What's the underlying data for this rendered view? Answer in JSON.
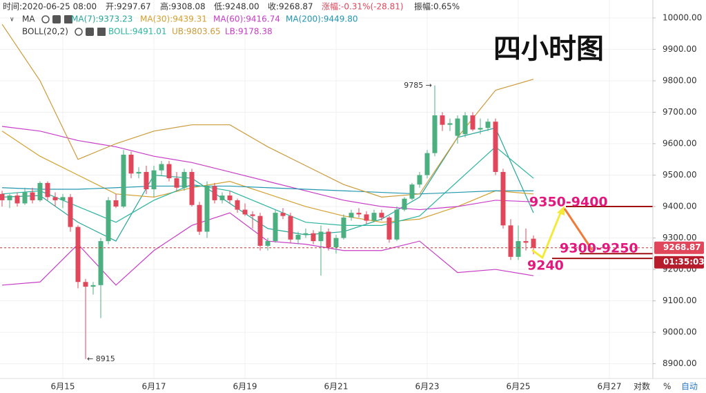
{
  "chart_data": {
    "type": "candlestick",
    "title": "四小时图",
    "header": [
      "时间:2020-06-25 08:00",
      "开:9297.67",
      "高:9308.08",
      "低:9248.00",
      "收:9268.87",
      "涨幅:-0.31%(-28.81)",
      "振幅:0.65%"
    ],
    "up_color": "#4caf80",
    "down_color": "#e0475b",
    "categories": [
      null,
      null,
      null,
      null,
      null,
      null,
      null,
      null,
      "6月15",
      null,
      null,
      null,
      null,
      null,
      null,
      null,
      null,
      null,
      null,
      null,
      "6月17",
      null,
      null,
      null,
      null,
      null,
      null,
      null,
      null,
      null,
      null,
      null,
      "6月19",
      null,
      null,
      null,
      null,
      null,
      null,
      null,
      null,
      null,
      null,
      null,
      "6月21",
      null,
      null,
      null,
      null,
      null,
      null,
      null,
      null,
      null,
      null,
      null,
      "6月23",
      null,
      null,
      null,
      null,
      null,
      null,
      null,
      null,
      null,
      null,
      null,
      "6月25",
      null,
      null,
      null,
      null,
      null,
      null,
      null,
      null,
      null,
      null,
      null,
      "6月27",
      null,
      null,
      null,
      null,
      null
    ],
    "open": [
      9440,
      9420,
      9435,
      9410,
      9445,
      9420,
      9475,
      9430,
      9420,
      9430,
      9335,
      9160,
      9145,
      9150,
      9290,
      9420,
      9400,
      9565,
      9505,
      9510,
      9455,
      9515,
      9535,
      9490,
      9460,
      9510,
      9405,
      9320,
      9465,
      9420,
      9435,
      9420,
      9390,
      9375,
      9370,
      9275,
      9290,
      9380,
      9370,
      9295,
      9310,
      9315,
      9290,
      9320,
      9270,
      9300,
      9365,
      9380,
      9375,
      9355,
      9380,
      9365,
      9295,
      9390,
      9425,
      9470,
      9500,
      9570,
      9690,
      9660,
      9625,
      9630,
      9690,
      9645,
      9650,
      9670,
      9510,
      9340,
      9240,
      9290,
      9297.67,
      null,
      null,
      null,
      null,
      null,
      null,
      null,
      null,
      null,
      null,
      null,
      null,
      null,
      null,
      null
    ],
    "high": [
      9450,
      9440,
      9445,
      9460,
      9460,
      9480,
      9480,
      9445,
      9440,
      9440,
      9340,
      9170,
      9160,
      9300,
      9430,
      9440,
      9580,
      9575,
      9525,
      9530,
      9530,
      9545,
      9545,
      9510,
      9520,
      9520,
      9415,
      9480,
      9475,
      9445,
      9450,
      9425,
      9410,
      9385,
      9380,
      9300,
      9390,
      9395,
      9380,
      9320,
      9330,
      9325,
      9340,
      9330,
      9310,
      9375,
      9390,
      9395,
      9385,
      9390,
      9390,
      9370,
      9400,
      9430,
      9475,
      9510,
      9580,
      9785,
      9700,
      9680,
      9690,
      9700,
      9700,
      9680,
      9680,
      9680,
      9520,
      9360,
      9340,
      9330,
      9308.08,
      null,
      null,
      null,
      null,
      null,
      null,
      null,
      null,
      null,
      null,
      null,
      null,
      null,
      null,
      null
    ],
    "low": [
      9400,
      9395,
      9400,
      9405,
      9410,
      9415,
      9420,
      9400,
      9395,
      9320,
      9140,
      8915,
      9120,
      9045,
      9280,
      9395,
      9395,
      9490,
      9490,
      9440,
      9430,
      9500,
      9480,
      9450,
      9450,
      9400,
      9310,
      9300,
      9410,
      9410,
      9410,
      9380,
      9370,
      9330,
      9260,
      9260,
      9285,
      9360,
      9285,
      9280,
      9300,
      9280,
      9180,
      9260,
      9250,
      9295,
      9355,
      9365,
      9345,
      9350,
      9355,
      9285,
      9290,
      9385,
      9420,
      9460,
      9490,
      9560,
      9640,
      9640,
      9600,
      9620,
      9640,
      9630,
      9640,
      9500,
      9330,
      9230,
      9230,
      9260,
      9248,
      null,
      null,
      null,
      null,
      null,
      null,
      null,
      null,
      null,
      null,
      null,
      null,
      null,
      null,
      null
    ],
    "close": [
      9420,
      9435,
      9410,
      9445,
      9420,
      9475,
      9430,
      9420,
      9430,
      9335,
      9160,
      9145,
      9150,
      9290,
      9420,
      9400,
      9565,
      9505,
      9510,
      9455,
      9515,
      9535,
      9490,
      9460,
      9510,
      9405,
      9320,
      9465,
      9420,
      9435,
      9420,
      9390,
      9375,
      9370,
      9275,
      9290,
      9380,
      9370,
      9295,
      9310,
      9315,
      9290,
      9320,
      9270,
      9300,
      9365,
      9380,
      9375,
      9355,
      9380,
      9365,
      9295,
      9390,
      9425,
      9470,
      9500,
      9570,
      9690,
      9660,
      9665,
      9680,
      9690,
      9645,
      9650,
      9670,
      9510,
      9340,
      9240,
      9290,
      9285,
      9268.87,
      null,
      null,
      null,
      null,
      null,
      null,
      null,
      null,
      null,
      null,
      null,
      null,
      null,
      null,
      null
    ],
    "indicators": [
      {
        "name": "MA",
        "series": [
          {
            "name": "MA(7):9373.23",
            "color": "#26a69a",
            "x": [
              0,
              5,
              10,
              15,
              20,
              25,
              30,
              35,
              40,
              45,
              50,
              55,
              60,
              65,
              70
            ],
            "values": [
              9430,
              9435,
              9350,
              9290,
              9500,
              9490,
              9410,
              9330,
              9310,
              9320,
              9360,
              9430,
              9620,
              9650,
              9380
            ]
          },
          {
            "name": "MA(30):9439.31",
            "color": "#d4a030",
            "x": [
              0,
              5,
              10,
              15,
              20,
              25,
              30,
              35,
              40,
              45,
              50,
              55,
              60,
              65,
              70
            ],
            "values": [
              9640,
              9560,
              9500,
              9440,
              9430,
              9460,
              9480,
              9440,
              9400,
              9370,
              9350,
              9360,
              9400,
              9450,
              9440
            ]
          },
          {
            "name": "MA(60):9416.74",
            "color": "#c83cc8",
            "x": [
              0,
              5,
              10,
              15,
              20,
              25,
              30,
              35,
              40,
              45,
              50,
              55,
              60,
              65,
              70
            ],
            "values": [
              9655,
              9640,
              9610,
              9590,
              9560,
              9540,
              9510,
              9480,
              9450,
              9420,
              9400,
              9390,
              9400,
              9420,
              9415
            ]
          },
          {
            "name": "MA(200):9449.80",
            "color": "#2196b0",
            "x": [
              0,
              5,
              10,
              15,
              20,
              25,
              30,
              35,
              40,
              45,
              50,
              55,
              60,
              65,
              70
            ],
            "values": [
              9460,
              9455,
              9455,
              9460,
              9465,
              9465,
              9465,
              9460,
              9455,
              9450,
              9445,
              9440,
              9445,
              9450,
              9450
            ]
          }
        ]
      },
      {
        "name": "BOLL(20,2)",
        "series": [
          {
            "name": "BOLL:9491.01",
            "color": "#2bb5a0",
            "x": [
              0,
              5,
              10,
              15,
              20,
              25,
              30,
              35,
              40,
              45,
              50,
              55,
              60,
              65,
              70
            ],
            "values": [
              9440,
              9450,
              9400,
              9350,
              9420,
              9470,
              9450,
              9400,
              9350,
              9340,
              9340,
              9370,
              9480,
              9590,
              9490
            ]
          },
          {
            "name": "UB:9803.65",
            "color": "#cc9a3a",
            "x": [
              0,
              5,
              10,
              15,
              20,
              25,
              30,
              35,
              40,
              45,
              50,
              55,
              60,
              65,
              70
            ],
            "values": [
              9980,
              9800,
              9550,
              9600,
              9640,
              9660,
              9660,
              9590,
              9530,
              9470,
              9430,
              9440,
              9620,
              9770,
              9805
            ]
          },
          {
            "name": "LB:9178.38",
            "color": "#c83cc8",
            "x": [
              0,
              5,
              10,
              15,
              20,
              25,
              30,
              35,
              40,
              45,
              50,
              55,
              60,
              65,
              70
            ],
            "values": [
              9150,
              9160,
              9280,
              9150,
              9260,
              9340,
              9380,
              9290,
              9280,
              9260,
              9260,
              9290,
              9190,
              9200,
              9180
            ]
          }
        ]
      }
    ],
    "ylim": [
      8853,
      10057
    ],
    "yticks": [
      {
        "value": 8900,
        "label": "8900.00"
      },
      {
        "value": 9000,
        "label": "9000.00"
      },
      {
        "value": 9100,
        "label": "9100.00"
      },
      {
        "value": 9200,
        "label": "9200.00"
      },
      {
        "value": 9300,
        "label": "9300.00"
      },
      {
        "value": 9400,
        "label": "9400.00"
      },
      {
        "value": 9500,
        "label": "9500.00"
      },
      {
        "value": 9600,
        "label": "9600.00"
      },
      {
        "value": 9700,
        "label": "9700.00"
      },
      {
        "value": 9800,
        "label": "9800.00"
      },
      {
        "value": 9900,
        "label": "9900.00"
      },
      {
        "value": 10000,
        "label": "10000.00"
      }
    ],
    "grid": true,
    "high_note": "9785 →",
    "low_note": "← 8915",
    "annotations": [
      "9350-9400",
      "9300-9250",
      "9240"
    ],
    "levels": [
      9400,
      9250,
      9235
    ],
    "countdown": "01:35:03",
    "axis_buttons": [
      "对数",
      "%",
      "自动"
    ]
  }
}
